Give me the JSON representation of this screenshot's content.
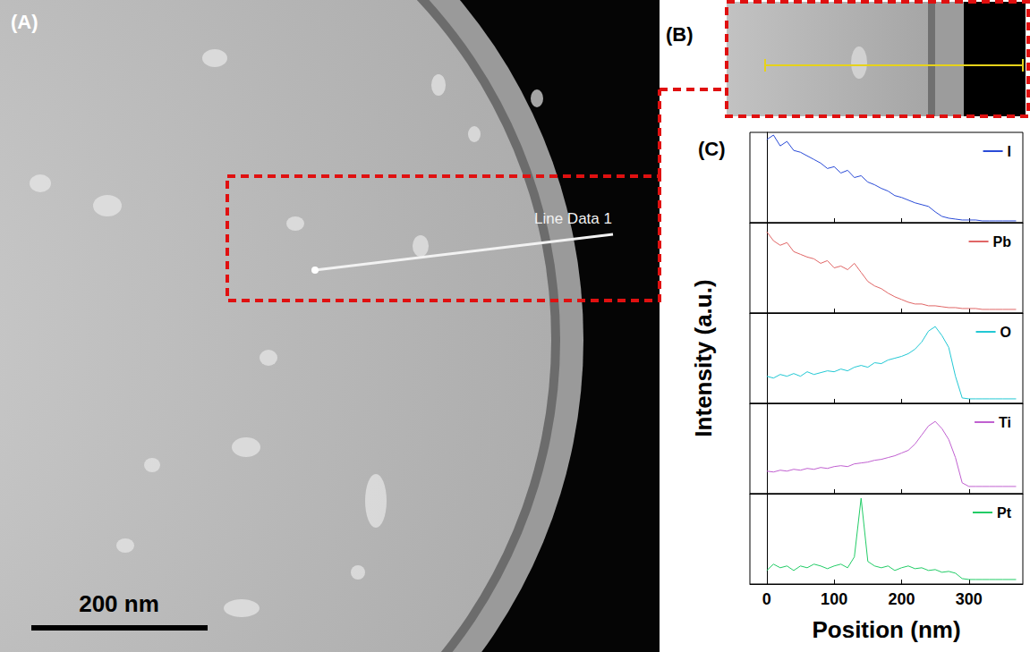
{
  "panels": {
    "A": {
      "label": "(A)",
      "annotation": "Line Data 1",
      "scale_bar": "200 nm"
    },
    "B": {
      "label": "(B)"
    },
    "C": {
      "label": "(C)"
    }
  },
  "chart_data": {
    "type": "line",
    "xlabel": "Position (nm)",
    "ylabel": "Intensity (a.u.)",
    "xlim": [
      -25,
      380
    ],
    "xticks": [
      0,
      100,
      200,
      300
    ],
    "ylim": [
      0,
      1
    ],
    "grid": false,
    "tick_labels": "x",
    "legend": "upper right",
    "x": [
      0,
      10,
      20,
      30,
      40,
      50,
      60,
      70,
      80,
      90,
      100,
      110,
      120,
      130,
      140,
      150,
      160,
      170,
      180,
      190,
      200,
      210,
      220,
      230,
      240,
      250,
      260,
      270,
      280,
      290,
      300,
      310,
      320,
      330,
      340,
      350,
      360,
      370
    ],
    "series": [
      {
        "name": "I",
        "color": "#2a4bd7",
        "values": [
          0.92,
          0.97,
          0.85,
          0.9,
          0.8,
          0.78,
          0.74,
          0.7,
          0.66,
          0.6,
          0.62,
          0.55,
          0.58,
          0.5,
          0.52,
          0.45,
          0.42,
          0.38,
          0.35,
          0.3,
          0.28,
          0.25,
          0.22,
          0.2,
          0.18,
          0.12,
          0.07,
          0.05,
          0.04,
          0.03,
          0.03,
          0.03,
          0.02,
          0.02,
          0.02,
          0.02,
          0.02,
          0.02
        ]
      },
      {
        "name": "Pb",
        "color": "#e06666",
        "values": [
          0.9,
          0.8,
          0.75,
          0.78,
          0.68,
          0.65,
          0.62,
          0.6,
          0.55,
          0.58,
          0.5,
          0.52,
          0.48,
          0.55,
          0.45,
          0.35,
          0.3,
          0.27,
          0.22,
          0.18,
          0.15,
          0.12,
          0.1,
          0.1,
          0.08,
          0.08,
          0.07,
          0.06,
          0.06,
          0.05,
          0.05,
          0.05,
          0.04,
          0.04,
          0.04,
          0.04,
          0.04,
          0.04
        ]
      },
      {
        "name": "O",
        "color": "#22c8d4",
        "values": [
          0.3,
          0.28,
          0.32,
          0.3,
          0.33,
          0.3,
          0.35,
          0.32,
          0.34,
          0.36,
          0.35,
          0.38,
          0.36,
          0.4,
          0.42,
          0.4,
          0.45,
          0.44,
          0.48,
          0.5,
          0.52,
          0.55,
          0.6,
          0.68,
          0.8,
          0.85,
          0.75,
          0.62,
          0.3,
          0.06,
          0.05,
          0.05,
          0.05,
          0.05,
          0.05,
          0.05,
          0.05,
          0.05
        ]
      },
      {
        "name": "Ti",
        "color": "#c060d0",
        "values": [
          0.25,
          0.24,
          0.26,
          0.25,
          0.27,
          0.26,
          0.28,
          0.27,
          0.29,
          0.28,
          0.3,
          0.31,
          0.3,
          0.33,
          0.34,
          0.35,
          0.37,
          0.38,
          0.4,
          0.42,
          0.45,
          0.48,
          0.55,
          0.65,
          0.75,
          0.8,
          0.72,
          0.6,
          0.4,
          0.12,
          0.08,
          0.08,
          0.08,
          0.08,
          0.08,
          0.08,
          0.08,
          0.08
        ]
      },
      {
        "name": "Pt",
        "color": "#22cc66",
        "values": [
          0.15,
          0.22,
          0.18,
          0.2,
          0.15,
          0.2,
          0.18,
          0.22,
          0.2,
          0.17,
          0.2,
          0.22,
          0.18,
          0.3,
          0.95,
          0.25,
          0.2,
          0.18,
          0.2,
          0.15,
          0.18,
          0.2,
          0.17,
          0.18,
          0.15,
          0.16,
          0.13,
          0.14,
          0.12,
          0.06,
          0.05,
          0.05,
          0.05,
          0.05,
          0.05,
          0.05,
          0.05,
          0.05
        ]
      }
    ]
  }
}
